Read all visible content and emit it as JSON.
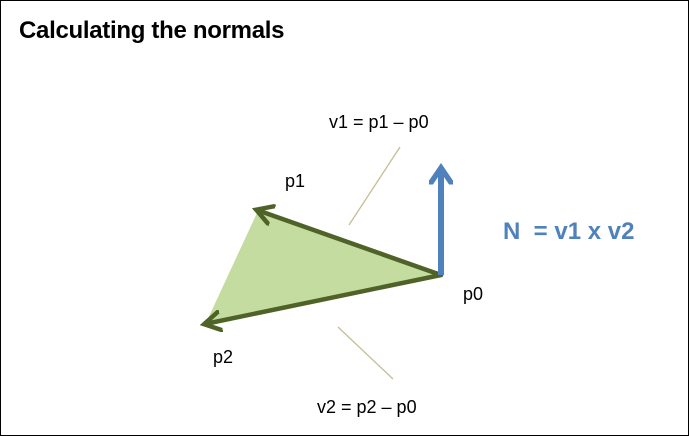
{
  "title": "Calculating the normals",
  "labels": {
    "v1_eq": "v1 = p1 – p0",
    "v2_eq": "v2 = p2 – p0",
    "p0": "p0",
    "p1": "p1",
    "p2": "p2",
    "normal_eq": "N  = v1 x v2"
  },
  "colors": {
    "triangle_fill": "#c4dca0",
    "vector_edge": "#4f6228",
    "normal_arrow": "#4f81bd",
    "leader_line": "#c4bd97",
    "text": "#000000"
  }
}
